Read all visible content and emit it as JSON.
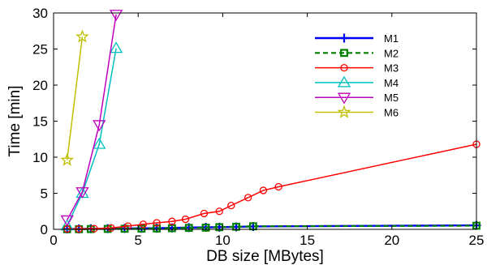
{
  "chart_data": {
    "type": "line",
    "title": "",
    "xlabel": "DB size [MBytes]",
    "ylabel": "Time [min]",
    "xlim": [
      0,
      25
    ],
    "ylim": [
      0,
      30
    ],
    "xticks": [
      0,
      5,
      10,
      15,
      20,
      25
    ],
    "yticks": [
      0,
      5,
      10,
      15,
      20,
      25,
      30
    ],
    "grid": false,
    "legend_position": "top-right",
    "series": [
      {
        "name": "M1",
        "color": "#0000ff",
        "marker": "plus",
        "dash": "solid",
        "points": [
          [
            0.8,
            0.05
          ],
          [
            1.5,
            0.05
          ],
          [
            2.2,
            0.08
          ],
          [
            3.2,
            0.1
          ],
          [
            4.2,
            0.12
          ],
          [
            5.2,
            0.14
          ],
          [
            6.1,
            0.16
          ],
          [
            7.0,
            0.2
          ],
          [
            8.0,
            0.24
          ],
          [
            9.0,
            0.28
          ],
          [
            9.8,
            0.3
          ],
          [
            10.8,
            0.34
          ],
          [
            11.8,
            0.4
          ],
          [
            25.0,
            0.55
          ]
        ]
      },
      {
        "name": "M2",
        "color": "#008000",
        "marker": "square",
        "dash": "dashed",
        "points": [
          [
            0.8,
            0.02
          ],
          [
            1.5,
            0.02
          ],
          [
            2.2,
            0.04
          ],
          [
            3.2,
            0.06
          ],
          [
            4.2,
            0.08
          ],
          [
            5.2,
            0.1
          ],
          [
            6.1,
            0.12
          ],
          [
            7.0,
            0.16
          ],
          [
            8.0,
            0.2
          ],
          [
            9.0,
            0.24
          ],
          [
            9.8,
            0.3
          ],
          [
            10.8,
            0.36
          ],
          [
            11.8,
            0.42
          ],
          [
            25.0,
            0.5
          ]
        ]
      },
      {
        "name": "M3",
        "color": "#ff0000",
        "marker": "circle",
        "dash": "solid",
        "points": [
          [
            0.8,
            0.05
          ],
          [
            1.5,
            0.05
          ],
          [
            2.4,
            0.1
          ],
          [
            3.4,
            0.2
          ],
          [
            4.4,
            0.45
          ],
          [
            5.3,
            0.7
          ],
          [
            6.1,
            0.9
          ],
          [
            7.0,
            1.1
          ],
          [
            7.8,
            1.4
          ],
          [
            8.9,
            2.2
          ],
          [
            9.8,
            2.5
          ],
          [
            10.5,
            3.3
          ],
          [
            11.5,
            4.4
          ],
          [
            12.4,
            5.4
          ],
          [
            13.3,
            5.9
          ],
          [
            25.0,
            11.8
          ]
        ]
      },
      {
        "name": "M4",
        "color": "#00bfbf",
        "marker": "triangle-up",
        "dash": "solid",
        "points": [
          [
            0.8,
            0.5
          ],
          [
            1.7,
            5.0
          ],
          [
            2.7,
            11.8
          ],
          [
            3.7,
            25.1
          ]
        ]
      },
      {
        "name": "M5",
        "color": "#bf00bf",
        "marker": "triangle-down",
        "dash": "solid",
        "points": [
          [
            0.8,
            1.3
          ],
          [
            1.7,
            5.2
          ],
          [
            2.7,
            14.5
          ],
          [
            3.7,
            29.8
          ]
        ]
      },
      {
        "name": "M6",
        "color": "#bfbf00",
        "marker": "star",
        "dash": "solid",
        "points": [
          [
            0.8,
            9.6
          ],
          [
            1.7,
            26.7
          ]
        ]
      }
    ]
  }
}
